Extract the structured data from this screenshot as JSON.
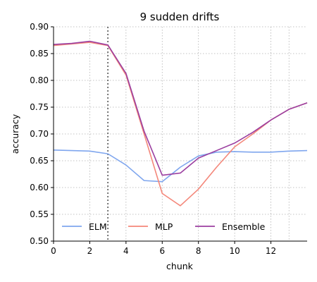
{
  "chart_data": {
    "type": "line",
    "title": "9 sudden drifts",
    "xlabel": "chunk",
    "ylabel": "accuracy",
    "xlim": [
      0,
      14
    ],
    "ylim": [
      0.5,
      0.9
    ],
    "x_ticks": [
      0,
      2,
      4,
      6,
      8,
      10,
      12
    ],
    "x_tick_labels": [
      "0",
      "2",
      "4",
      "6",
      "8",
      "10",
      "12"
    ],
    "y_ticks": [
      0.5,
      0.55,
      0.6,
      0.65,
      0.7,
      0.75,
      0.8,
      0.85,
      0.9
    ],
    "y_tick_labels": [
      "0.50",
      "0.55",
      "0.60",
      "0.65",
      "0.70",
      "0.75",
      "0.80",
      "0.85",
      "0.90"
    ],
    "grid": true,
    "legend_position": "bottom",
    "drift_marker_x": 3,
    "x": [
      0,
      1,
      2,
      3,
      4,
      5,
      6,
      7,
      8,
      9,
      10,
      11,
      12,
      13,
      14
    ],
    "series": [
      {
        "name": "ELM",
        "color": "#7fa6ee",
        "values": [
          0.67,
          0.669,
          0.668,
          0.663,
          0.642,
          0.613,
          0.611,
          0.638,
          0.659,
          0.666,
          0.667,
          0.666,
          0.666,
          0.668,
          0.669
        ]
      },
      {
        "name": "MLP",
        "color": "#f4877a",
        "values": [
          0.865,
          0.868,
          0.871,
          0.865,
          0.81,
          0.7,
          0.589,
          0.566,
          0.597,
          0.638,
          0.676,
          0.7,
          0.726,
          0.746,
          0.758
        ]
      },
      {
        "name": "Ensemble",
        "color": "#9b3fa0",
        "values": [
          0.867,
          0.869,
          0.873,
          0.866,
          0.813,
          0.705,
          0.623,
          0.627,
          0.655,
          0.669,
          0.683,
          0.703,
          0.726,
          0.746,
          0.758
        ]
      }
    ]
  }
}
